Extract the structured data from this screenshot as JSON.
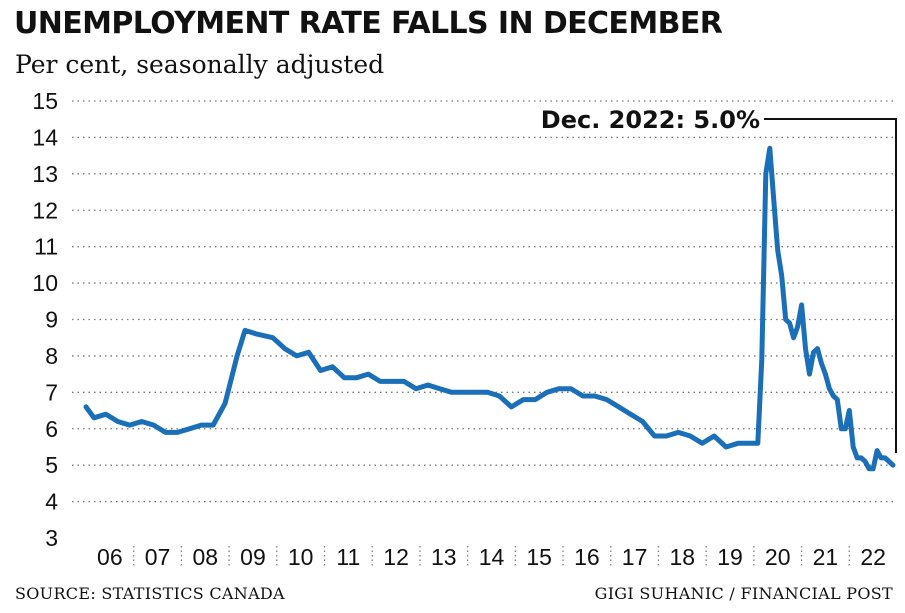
{
  "header": {
    "title": "UNEMPLOYMENT RATE FALLS IN DECEMBER",
    "subtitle": "Per cent, seasonally adjusted"
  },
  "footer": {
    "source": "SOURCE: STATISTICS CANADA",
    "credit": "GIGI SUHANIC / FINANCIAL POST"
  },
  "colors": {
    "line": "#1a6fb8",
    "grid": "#777777",
    "text": "#111111"
  },
  "chart_data": {
    "type": "line",
    "title": "UNEMPLOYMENT RATE FALLS IN DECEMBER",
    "subtitle": "Per cent, seasonally adjusted",
    "ylabel": "",
    "xlabel": "",
    "ylim": [
      3,
      15
    ],
    "yticks": [
      "3",
      "4",
      "5",
      "6",
      "7",
      "8",
      "9",
      "10",
      "11",
      "12",
      "13",
      "14",
      "15"
    ],
    "xticks": [
      "06",
      "07",
      "08",
      "09",
      "10",
      "11",
      "12",
      "13",
      "14",
      "15",
      "16",
      "17",
      "18",
      "19",
      "20",
      "21",
      "22"
    ],
    "xlim": [
      "2006-01",
      "2022-12"
    ],
    "grid": true,
    "annotation": {
      "text": "Dec. 2022: 5.0%",
      "x": "2022-12",
      "y": 5.0
    },
    "series": [
      {
        "x": [
          "2006-01",
          "2006-03",
          "2006-06",
          "2006-09",
          "2006-12",
          "2007-03",
          "2007-06",
          "2007-09",
          "2007-12",
          "2008-03",
          "2008-06",
          "2008-09",
          "2008-12",
          "2009-03",
          "2009-05",
          "2009-08",
          "2009-12",
          "2010-03",
          "2010-06",
          "2010-09",
          "2010-12",
          "2011-03",
          "2011-06",
          "2011-09",
          "2011-12",
          "2012-03",
          "2012-06",
          "2012-09",
          "2012-12",
          "2013-03",
          "2013-06",
          "2013-09",
          "2013-12",
          "2014-03",
          "2014-06",
          "2014-09",
          "2014-12",
          "2015-03",
          "2015-06",
          "2015-09",
          "2015-12",
          "2016-03",
          "2016-06",
          "2016-09",
          "2016-12",
          "2017-03",
          "2017-06",
          "2017-09",
          "2017-12",
          "2018-03",
          "2018-06",
          "2018-09",
          "2018-12",
          "2019-03",
          "2019-06",
          "2019-09",
          "2019-12",
          "2020-01",
          "2020-02",
          "2020-03",
          "2020-04",
          "2020-05",
          "2020-06",
          "2020-07",
          "2020-08",
          "2020-09",
          "2020-10",
          "2020-11",
          "2020-12",
          "2021-01",
          "2021-02",
          "2021-03",
          "2021-04",
          "2021-05",
          "2021-06",
          "2021-07",
          "2021-08",
          "2021-09",
          "2021-10",
          "2021-11",
          "2021-12",
          "2022-01",
          "2022-02",
          "2022-03",
          "2022-04",
          "2022-05",
          "2022-06",
          "2022-07",
          "2022-08",
          "2022-09",
          "2022-10",
          "2022-11",
          "2022-12"
        ],
        "y": [
          6.6,
          6.3,
          6.4,
          6.2,
          6.1,
          6.2,
          6.1,
          5.9,
          5.9,
          6.0,
          6.1,
          6.1,
          6.7,
          8.0,
          8.7,
          8.6,
          8.5,
          8.2,
          8.0,
          8.1,
          7.6,
          7.7,
          7.4,
          7.4,
          7.5,
          7.3,
          7.3,
          7.3,
          7.1,
          7.2,
          7.1,
          7.0,
          7.0,
          7.0,
          7.0,
          6.9,
          6.6,
          6.8,
          6.8,
          7.0,
          7.1,
          7.1,
          6.9,
          6.9,
          6.8,
          6.6,
          6.4,
          6.2,
          5.8,
          5.8,
          5.9,
          5.8,
          5.6,
          5.8,
          5.5,
          5.6,
          5.6,
          5.6,
          5.6,
          7.9,
          13.0,
          13.7,
          12.3,
          10.9,
          10.2,
          9.0,
          8.9,
          8.5,
          8.8,
          9.4,
          8.2,
          7.5,
          8.1,
          8.2,
          7.8,
          7.5,
          7.1,
          6.9,
          6.8,
          6.0,
          6.0,
          6.5,
          5.5,
          5.2,
          5.2,
          5.1,
          4.9,
          4.9,
          5.4,
          5.2,
          5.2,
          5.1,
          5.0
        ]
      }
    ]
  }
}
